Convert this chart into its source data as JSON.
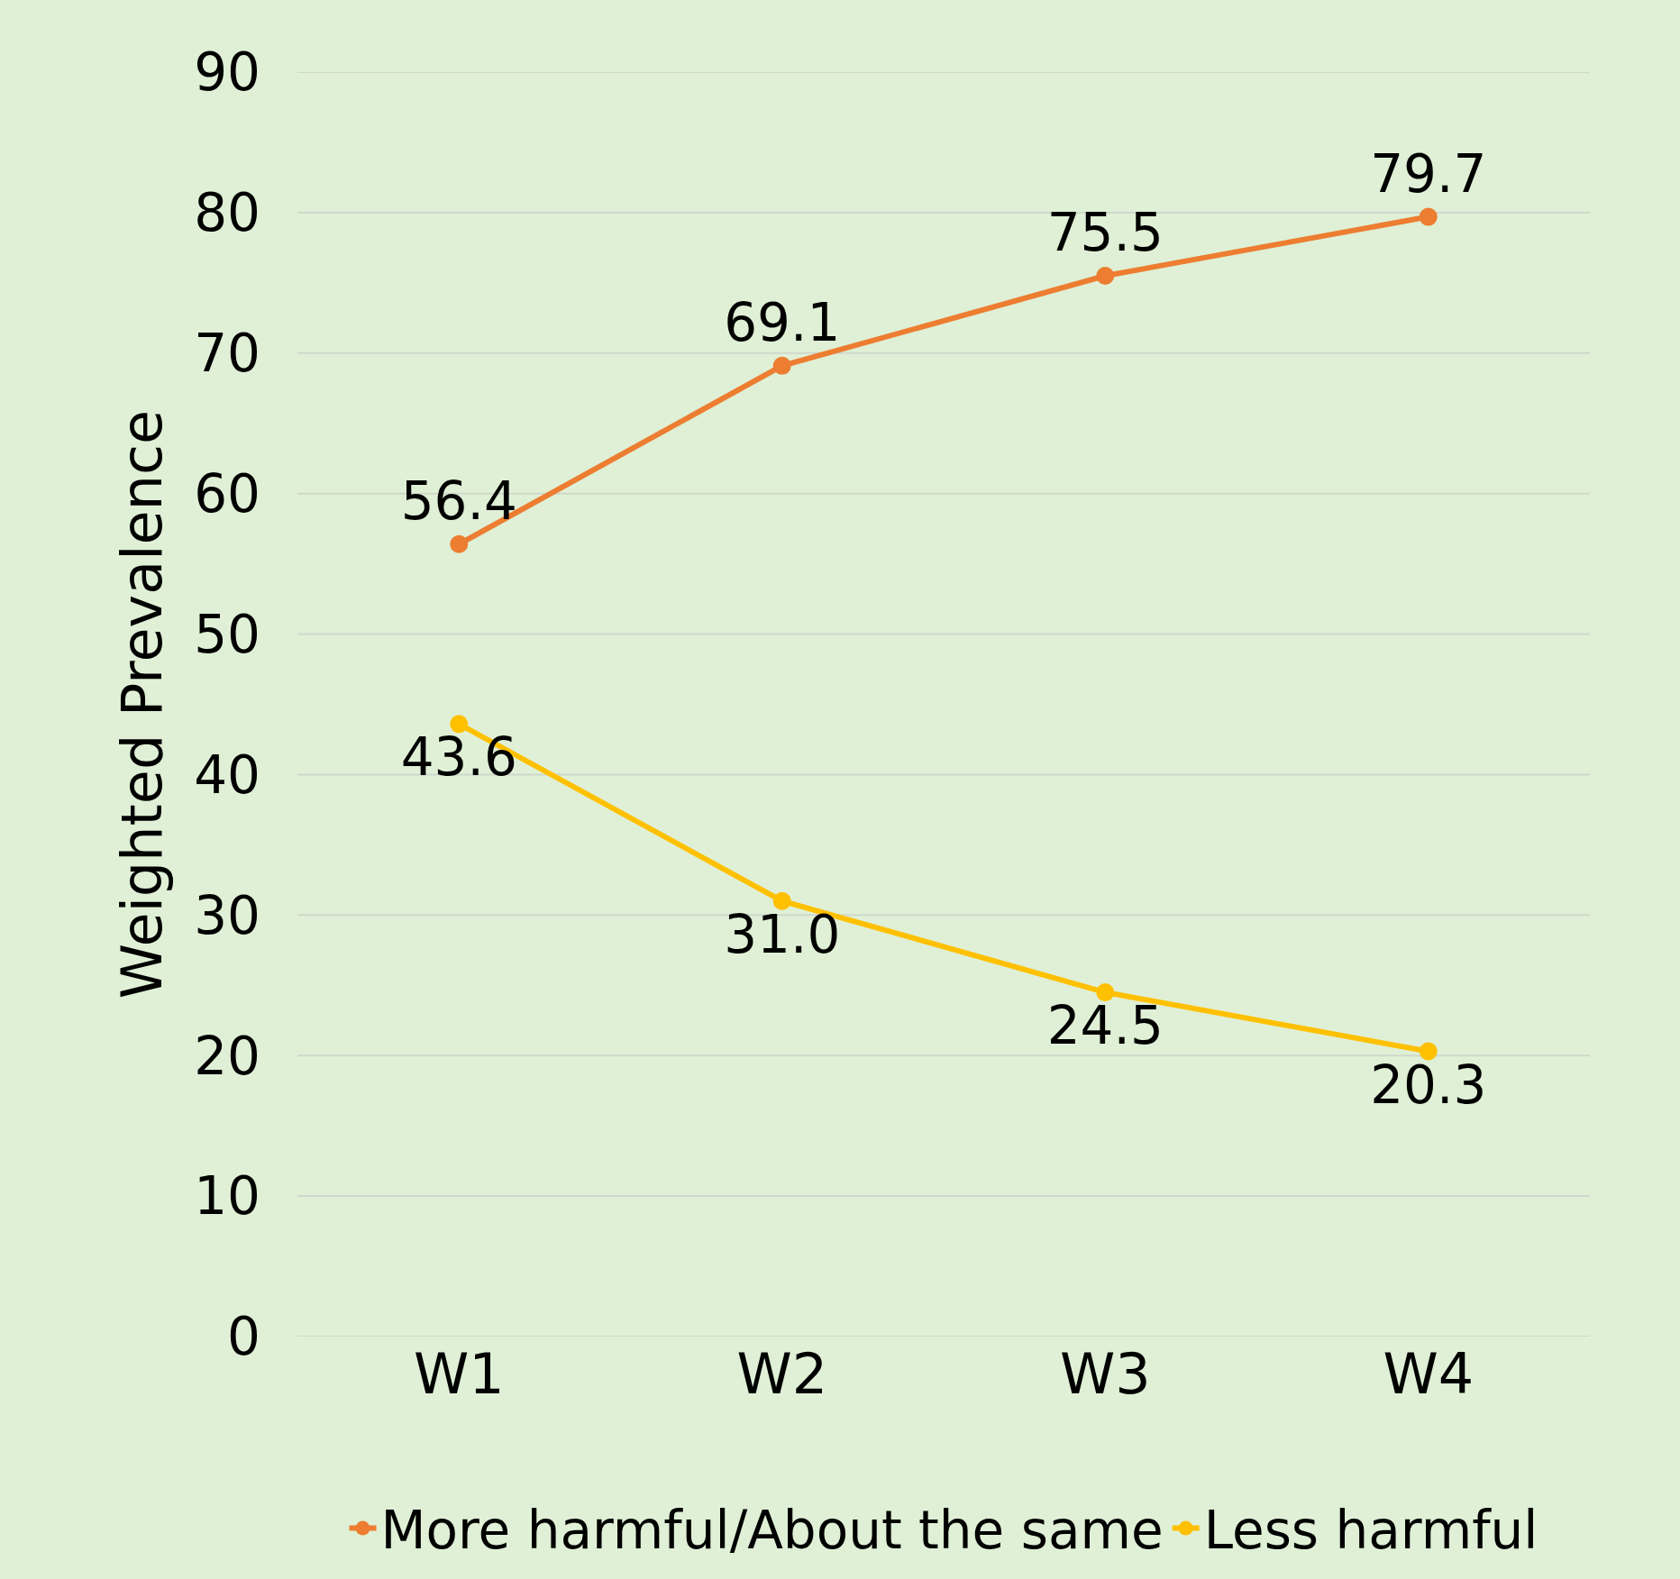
{
  "chart_data": {
    "type": "line",
    "ylabel": "Weighted Prevalence",
    "categories": [
      "W1",
      "W2",
      "W3",
      "W4"
    ],
    "series": [
      {
        "name": "More harmful/About the same",
        "color": "#ed7d31",
        "values": [
          56.4,
          69.1,
          75.5,
          79.7
        ],
        "value_labels": [
          "56.4",
          "69.1",
          "75.5",
          "79.7"
        ]
      },
      {
        "name": "Less harmful",
        "color": "#ffc000",
        "values": [
          43.6,
          31.0,
          24.5,
          20.3
        ],
        "value_labels": [
          "43.6",
          "31.0",
          "24.5",
          "20.3"
        ]
      }
    ],
    "ylim": [
      0,
      90
    ],
    "yticks": [
      0,
      10,
      20,
      30,
      40,
      50,
      60,
      70,
      80,
      90
    ],
    "grid": "y",
    "legend": "bottom",
    "marker": "circle",
    "line_style": "solid"
  }
}
